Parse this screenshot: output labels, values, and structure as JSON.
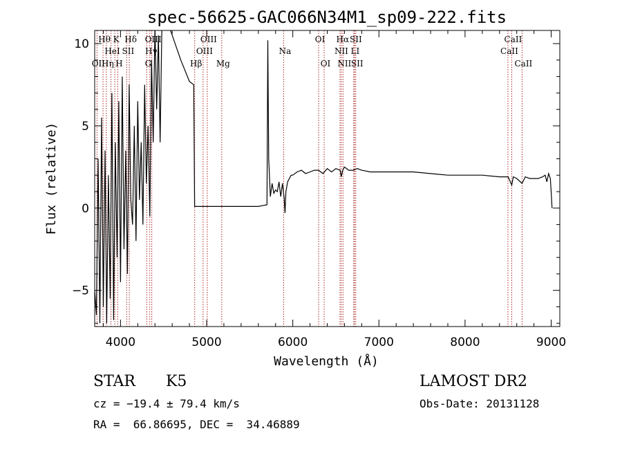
{
  "chart_data": {
    "type": "line",
    "title": "spec-56625-GAC066N34M1_sp09-222.fits",
    "xlabel": "Wavelength (Å)",
    "ylabel": "Flux (relative)",
    "xlim": [
      3700,
      9100
    ],
    "ylim": [
      -7.2,
      10.8
    ],
    "xticks": [
      4000,
      5000,
      6000,
      7000,
      8000,
      9000
    ],
    "yticks": [
      -5,
      0,
      5,
      10
    ],
    "xtick_labels": [
      "4000",
      "5000",
      "6000",
      "7000",
      "8000",
      "9000"
    ],
    "ytick_labels": [
      "−5",
      "0",
      "5",
      "10"
    ],
    "spectrum": {
      "x": [
        3700,
        3720,
        3740,
        3760,
        3780,
        3800,
        3820,
        3840,
        3860,
        3880,
        3900,
        3920,
        3940,
        3960,
        3980,
        4000,
        4020,
        4040,
        4060,
        4080,
        4100,
        4120,
        4140,
        4160,
        4180,
        4200,
        4220,
        4240,
        4260,
        4280,
        4300,
        4320,
        4340,
        4360,
        4380,
        4400,
        4420,
        4440,
        4460,
        4480,
        4500,
        4600,
        4700,
        4800,
        4850,
        4860,
        4880,
        5000,
        5200,
        5400,
        5600,
        5700,
        5710,
        5720,
        5740,
        5760,
        5780,
        5800,
        5820,
        5840,
        5860,
        5880,
        5900,
        5910,
        5920,
        5940,
        5960,
        5980,
        6000,
        6050,
        6100,
        6150,
        6200,
        6250,
        6300,
        6350,
        6400,
        6450,
        6500,
        6550,
        6563,
        6580,
        6600,
        6650,
        6700,
        6750,
        6800,
        6900,
        7000,
        7200,
        7400,
        7600,
        7800,
        8000,
        8200,
        8400,
        8500,
        8542,
        8560,
        8600,
        8662,
        8700,
        8750,
        8800,
        8850,
        8900,
        8930,
        8950,
        8970,
        8990,
        9000,
        9010
      ],
      "y": [
        -5.0,
        -6.5,
        3.0,
        -7.0,
        5.5,
        -6.0,
        3.5,
        -7.0,
        2.0,
        -5.5,
        7.0,
        -6.8,
        4.0,
        -3.0,
        6.5,
        -4.5,
        8.0,
        -2.5,
        3.5,
        -4.0,
        7.5,
        0.5,
        -1.0,
        5.0,
        -2.0,
        6.5,
        0.5,
        4.0,
        -1.0,
        7.5,
        1.5,
        5.0,
        -0.5,
        9.0,
        4.0,
        11.0,
        6.0,
        10.5,
        4.0,
        11.0,
        12.0,
        10.5,
        9.0,
        7.7,
        7.5,
        0.1,
        0.1,
        0.1,
        0.1,
        0.1,
        0.1,
        0.2,
        10.2,
        3.0,
        0.7,
        1.5,
        0.9,
        1.1,
        1.0,
        1.6,
        0.7,
        1.5,
        0.6,
        -0.3,
        1.0,
        1.6,
        1.8,
        2.0,
        2.0,
        2.2,
        2.3,
        2.1,
        2.2,
        2.3,
        2.3,
        2.1,
        2.4,
        2.2,
        2.4,
        2.3,
        1.9,
        2.3,
        2.5,
        2.3,
        2.3,
        2.4,
        2.3,
        2.2,
        2.2,
        2.2,
        2.2,
        2.1,
        2.0,
        2.0,
        2.0,
        1.9,
        1.9,
        1.4,
        1.9,
        1.8,
        1.5,
        1.9,
        1.8,
        1.8,
        1.8,
        1.9,
        2.0,
        1.6,
        2.1,
        1.8,
        1.0,
        0.0
      ]
    },
    "lines": [
      {
        "name": "OII",
        "wavelength": 3727,
        "row": 3
      },
      {
        "name": "Hθ",
        "wavelength": 3797,
        "row": 1
      },
      {
        "name": "Hη",
        "wavelength": 3835,
        "row": 3
      },
      {
        "name": "HeI",
        "wavelength": 3889,
        "row": 2
      },
      {
        "name": "K",
        "wavelength": 3934,
        "row": 1
      },
      {
        "name": "SII",
        "wavelength": 4072,
        "row": 2
      },
      {
        "name": "H",
        "wavelength": 3968,
        "row": 3
      },
      {
        "name": "Hδ",
        "wavelength": 4102,
        "row": 1
      },
      {
        "name": "G",
        "wavelength": 4305,
        "row": 3
      },
      {
        "name": "Hγ",
        "wavelength": 4340,
        "row": 2
      },
      {
        "name": "OIII",
        "wavelength": 4363,
        "row": 1
      },
      {
        "name": "Hβ",
        "wavelength": 4861,
        "row": 3
      },
      {
        "name": "OIII",
        "wavelength": 4959,
        "row": 2
      },
      {
        "name": "OIII",
        "wavelength": 5007,
        "row": 1
      },
      {
        "name": "Mg",
        "wavelength": 5175,
        "row": 3
      },
      {
        "name": "Na",
        "wavelength": 5894,
        "row": 2
      },
      {
        "name": "OI",
        "wavelength": 6300,
        "row": 1
      },
      {
        "name": "OI",
        "wavelength": 6364,
        "row": 3
      },
      {
        "name": "NII",
        "wavelength": 6548,
        "row": 2
      },
      {
        "name": "Hα",
        "wavelength": 6563,
        "row": 1
      },
      {
        "name": "NII",
        "wavelength": 6583,
        "row": 3
      },
      {
        "name": "SII",
        "wavelength": 6716,
        "row": 1
      },
      {
        "name": "LI",
        "wavelength": 6708,
        "row": 2
      },
      {
        "name": "SII",
        "wavelength": 6731,
        "row": 3
      },
      {
        "name": "CaII",
        "wavelength": 8498,
        "row": 2
      },
      {
        "name": "CaII",
        "wavelength": 8542,
        "row": 1
      },
      {
        "name": "CaII",
        "wavelength": 8662,
        "row": 3
      }
    ],
    "colors": {
      "spectrum": "#000000",
      "lines": "#aa2222",
      "axes": "#000000"
    },
    "grid": false
  },
  "info": {
    "class": "STAR",
    "subclass": "K5",
    "survey": "LAMOST DR2",
    "redshift": "cz = −19.4 ± 79.4 km/s",
    "obs_date": "Obs-Date: 20131128",
    "coords": "RA =  66.86695, DEC =  34.46889"
  }
}
